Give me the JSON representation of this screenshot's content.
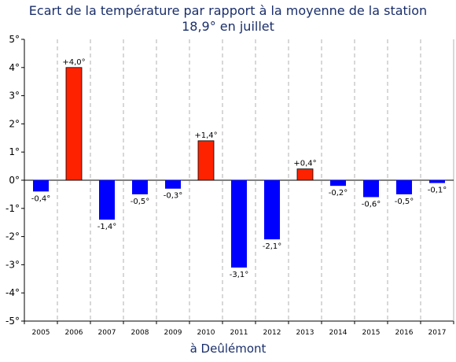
{
  "chart_data": {
    "type": "bar",
    "title_line1": "Ecart de la température par rapport à la moyenne de la station",
    "title_line2": "18,9° en juillet",
    "xlabel": "à Deûlémont",
    "ylabel": "",
    "categories": [
      "2005",
      "2006",
      "2007",
      "2008",
      "2009",
      "2010",
      "2011",
      "2012",
      "2013",
      "2014",
      "2015",
      "2016",
      "2017"
    ],
    "values": [
      -0.4,
      4.0,
      -1.4,
      -0.5,
      -0.3,
      1.4,
      -3.1,
      -2.1,
      0.4,
      -0.2,
      -0.6,
      -0.5,
      -0.1
    ],
    "value_labels": [
      "-0,4°",
      "+4,0°",
      "-1,4°",
      "-0,5°",
      "-0,3°",
      "+1,4°",
      "-3,1°",
      "-2,1°",
      "+0,4°",
      "-0,2°",
      "-0,6°",
      "-0,5°",
      "-0,1°"
    ],
    "ylim": [
      -5,
      5
    ],
    "yticks": [
      -5,
      -4,
      -3,
      -2,
      -1,
      0,
      1,
      2,
      3,
      4,
      5
    ],
    "ytick_labels": [
      "-5°",
      "-4°",
      "-3°",
      "-2°",
      "-1°",
      "0°",
      "1°",
      "2°",
      "3°",
      "4°",
      "5°"
    ],
    "grid": "vertical dashed",
    "colors": {
      "positive": "#ff2200",
      "negative": "#0000ff",
      "title": "#1a2f6b"
    }
  }
}
